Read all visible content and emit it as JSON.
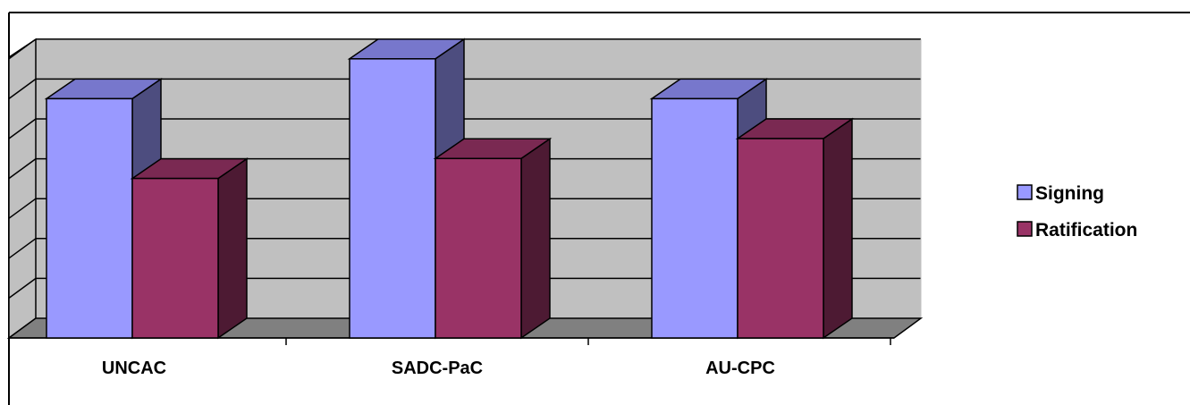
{
  "chart_data": {
    "type": "bar",
    "style": "3d-clustered-column",
    "categories": [
      "UNCAC",
      "SADC-PaC",
      "AU-CPC"
    ],
    "series": [
      {
        "name": "Signing",
        "values": [
          6,
          7,
          6
        ],
        "color": "#9999FF",
        "side_color": "#4D4D7F",
        "top_color": "#7777CC"
      },
      {
        "name": "Ratification",
        "values": [
          4,
          4.5,
          5
        ],
        "color": "#993366",
        "side_color": "#4D1A33",
        "top_color": "#7A2952"
      }
    ],
    "ylim": [
      0,
      7
    ],
    "y_tick_labels_shown": false,
    "grid": true,
    "legend_position": "right",
    "wall_color": "#C0C0C0",
    "floor_color": "#808080"
  }
}
